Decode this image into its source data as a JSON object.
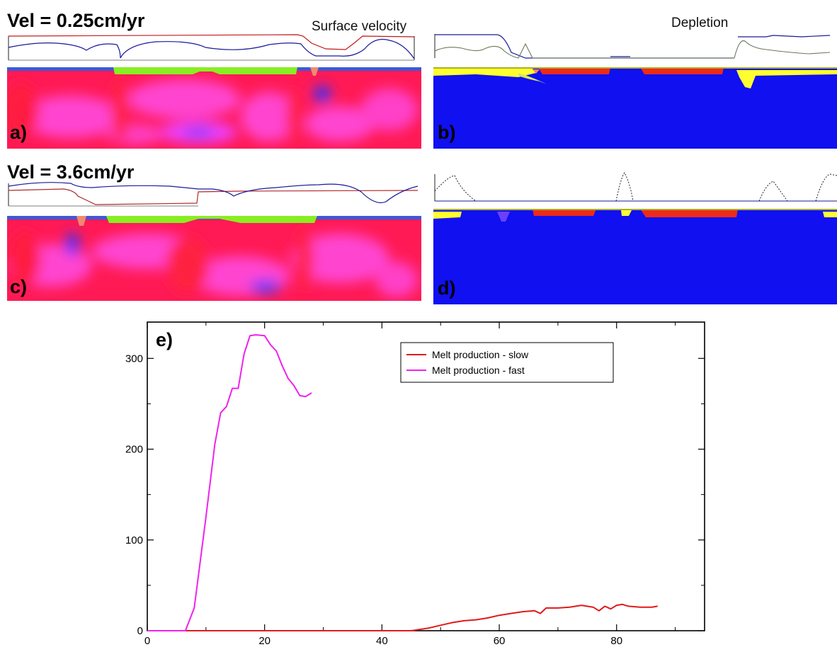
{
  "headings": {
    "slow": "Vel = 0.25cm/yr",
    "fast": "Vel = 3.6cm/yr",
    "surface_velocity": "Surface velocity",
    "depletion": "Depletion"
  },
  "panel_labels": {
    "a": "a)",
    "b": "b)",
    "c": "c)",
    "d": "d)",
    "e": "e)"
  },
  "colors": {
    "mantle_red": "#ff1850",
    "mantle_magenta": "#ff40e0",
    "continent_green": "#88ee22",
    "depletion_blue": "#1010f0",
    "depletion_red": "#ee2a1a",
    "depletion_yellow": "#ffff20",
    "slow_series": "#e01a1a",
    "fast_series": "#ee22ee"
  },
  "chart_data": {
    "type": "line",
    "title": "",
    "xlabel": "",
    "ylabel": "",
    "xlim": [
      0,
      95
    ],
    "ylim": [
      0,
      340
    ],
    "xticks": [
      0,
      20,
      40,
      60,
      80
    ],
    "yticks": [
      0,
      100,
      200,
      300
    ],
    "legend_position": "top-right",
    "grid": false,
    "series": [
      {
        "name": "Melt production - slow",
        "color": "#e01a1a",
        "x": [
          0,
          45,
          46,
          48,
          50,
          52,
          54,
          56,
          58,
          60,
          62,
          64,
          66,
          67,
          68,
          70,
          72,
          74,
          76,
          77,
          78,
          79,
          80,
          81,
          82,
          84,
          86,
          87
        ],
        "y": [
          0,
          0,
          1,
          3,
          6,
          9,
          11,
          12,
          14,
          17,
          19,
          21,
          22,
          19,
          25,
          25,
          26,
          28,
          26,
          22,
          27,
          24,
          28,
          29,
          27,
          26,
          26,
          27
        ]
      },
      {
        "name": "Melt production - fast",
        "color": "#ee22ee",
        "x": [
          0,
          6.5,
          8,
          10,
          11.5,
          12.5,
          13.5,
          14.5,
          15.5,
          16.5,
          17.5,
          18.5,
          20,
          21,
          22,
          23,
          24,
          25,
          26,
          27,
          28
        ],
        "y": [
          0,
          0,
          25,
          125,
          205,
          240,
          247,
          267,
          267,
          305,
          325,
          326,
          325,
          315,
          308,
          292,
          278,
          270,
          259,
          258,
          262
        ]
      }
    ]
  }
}
